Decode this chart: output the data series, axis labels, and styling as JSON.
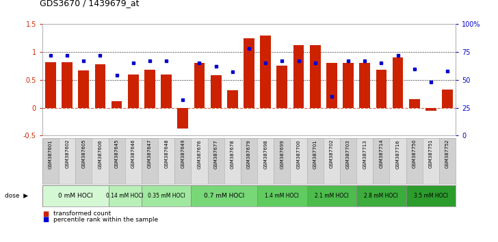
{
  "title": "GDS3670 / 1439679_at",
  "samples": [
    "GSM387601",
    "GSM387602",
    "GSM387605",
    "GSM387606",
    "GSM387645",
    "GSM387646",
    "GSM387647",
    "GSM387648",
    "GSM387649",
    "GSM387676",
    "GSM387677",
    "GSM387678",
    "GSM387679",
    "GSM387698",
    "GSM387699",
    "GSM387700",
    "GSM387701",
    "GSM387702",
    "GSM387703",
    "GSM387713",
    "GSM387714",
    "GSM387716",
    "GSM387750",
    "GSM387751",
    "GSM387752"
  ],
  "bar_values": [
    0.82,
    0.82,
    0.67,
    0.78,
    0.12,
    0.6,
    0.68,
    0.6,
    -0.38,
    0.8,
    0.58,
    0.31,
    1.25,
    1.3,
    0.75,
    1.12,
    1.12,
    0.8,
    0.8,
    0.8,
    0.68,
    0.9,
    0.16,
    -0.05,
    0.32
  ],
  "dot_values": [
    72,
    72,
    67,
    72,
    54,
    65,
    67,
    67,
    32,
    65,
    62,
    57,
    78,
    65,
    67,
    67,
    65,
    35,
    67,
    67,
    65,
    72,
    60,
    48,
    58
  ],
  "dose_groups": [
    {
      "label": "0 mM HOCl",
      "start": 0,
      "end": 4,
      "color": "#d4f7d4"
    },
    {
      "label": "0.14 mM HOCl",
      "start": 4,
      "end": 6,
      "color": "#b8f0b8"
    },
    {
      "label": "0.35 mM HOCl",
      "start": 6,
      "end": 9,
      "color": "#a0e8a0"
    },
    {
      "label": "0.7 mM HOCl",
      "start": 9,
      "end": 13,
      "color": "#78d878"
    },
    {
      "label": "1.4 mM HOCl",
      "start": 13,
      "end": 16,
      "color": "#60cc60"
    },
    {
      "label": "2.1 mM HOCl",
      "start": 16,
      "end": 19,
      "color": "#4cbc4c"
    },
    {
      "label": "2.8 mM HOCl",
      "start": 19,
      "end": 22,
      "color": "#3cac3c"
    },
    {
      "label": "3.5 mM HOCl",
      "start": 22,
      "end": 25,
      "color": "#2c9c2c"
    }
  ],
  "bar_color": "#cc2200",
  "dot_color": "#0000cc",
  "ylim_left": [
    -0.5,
    1.5
  ],
  "ylim_right": [
    0,
    100
  ],
  "yticks_left": [
    -0.5,
    0.0,
    0.5,
    1.0,
    1.5
  ],
  "yticks_right": [
    0,
    25,
    50,
    75,
    100
  ],
  "hline_y": [
    0.5,
    1.0
  ],
  "zero_line_y": 0.0,
  "bg_color": "#ffffff"
}
